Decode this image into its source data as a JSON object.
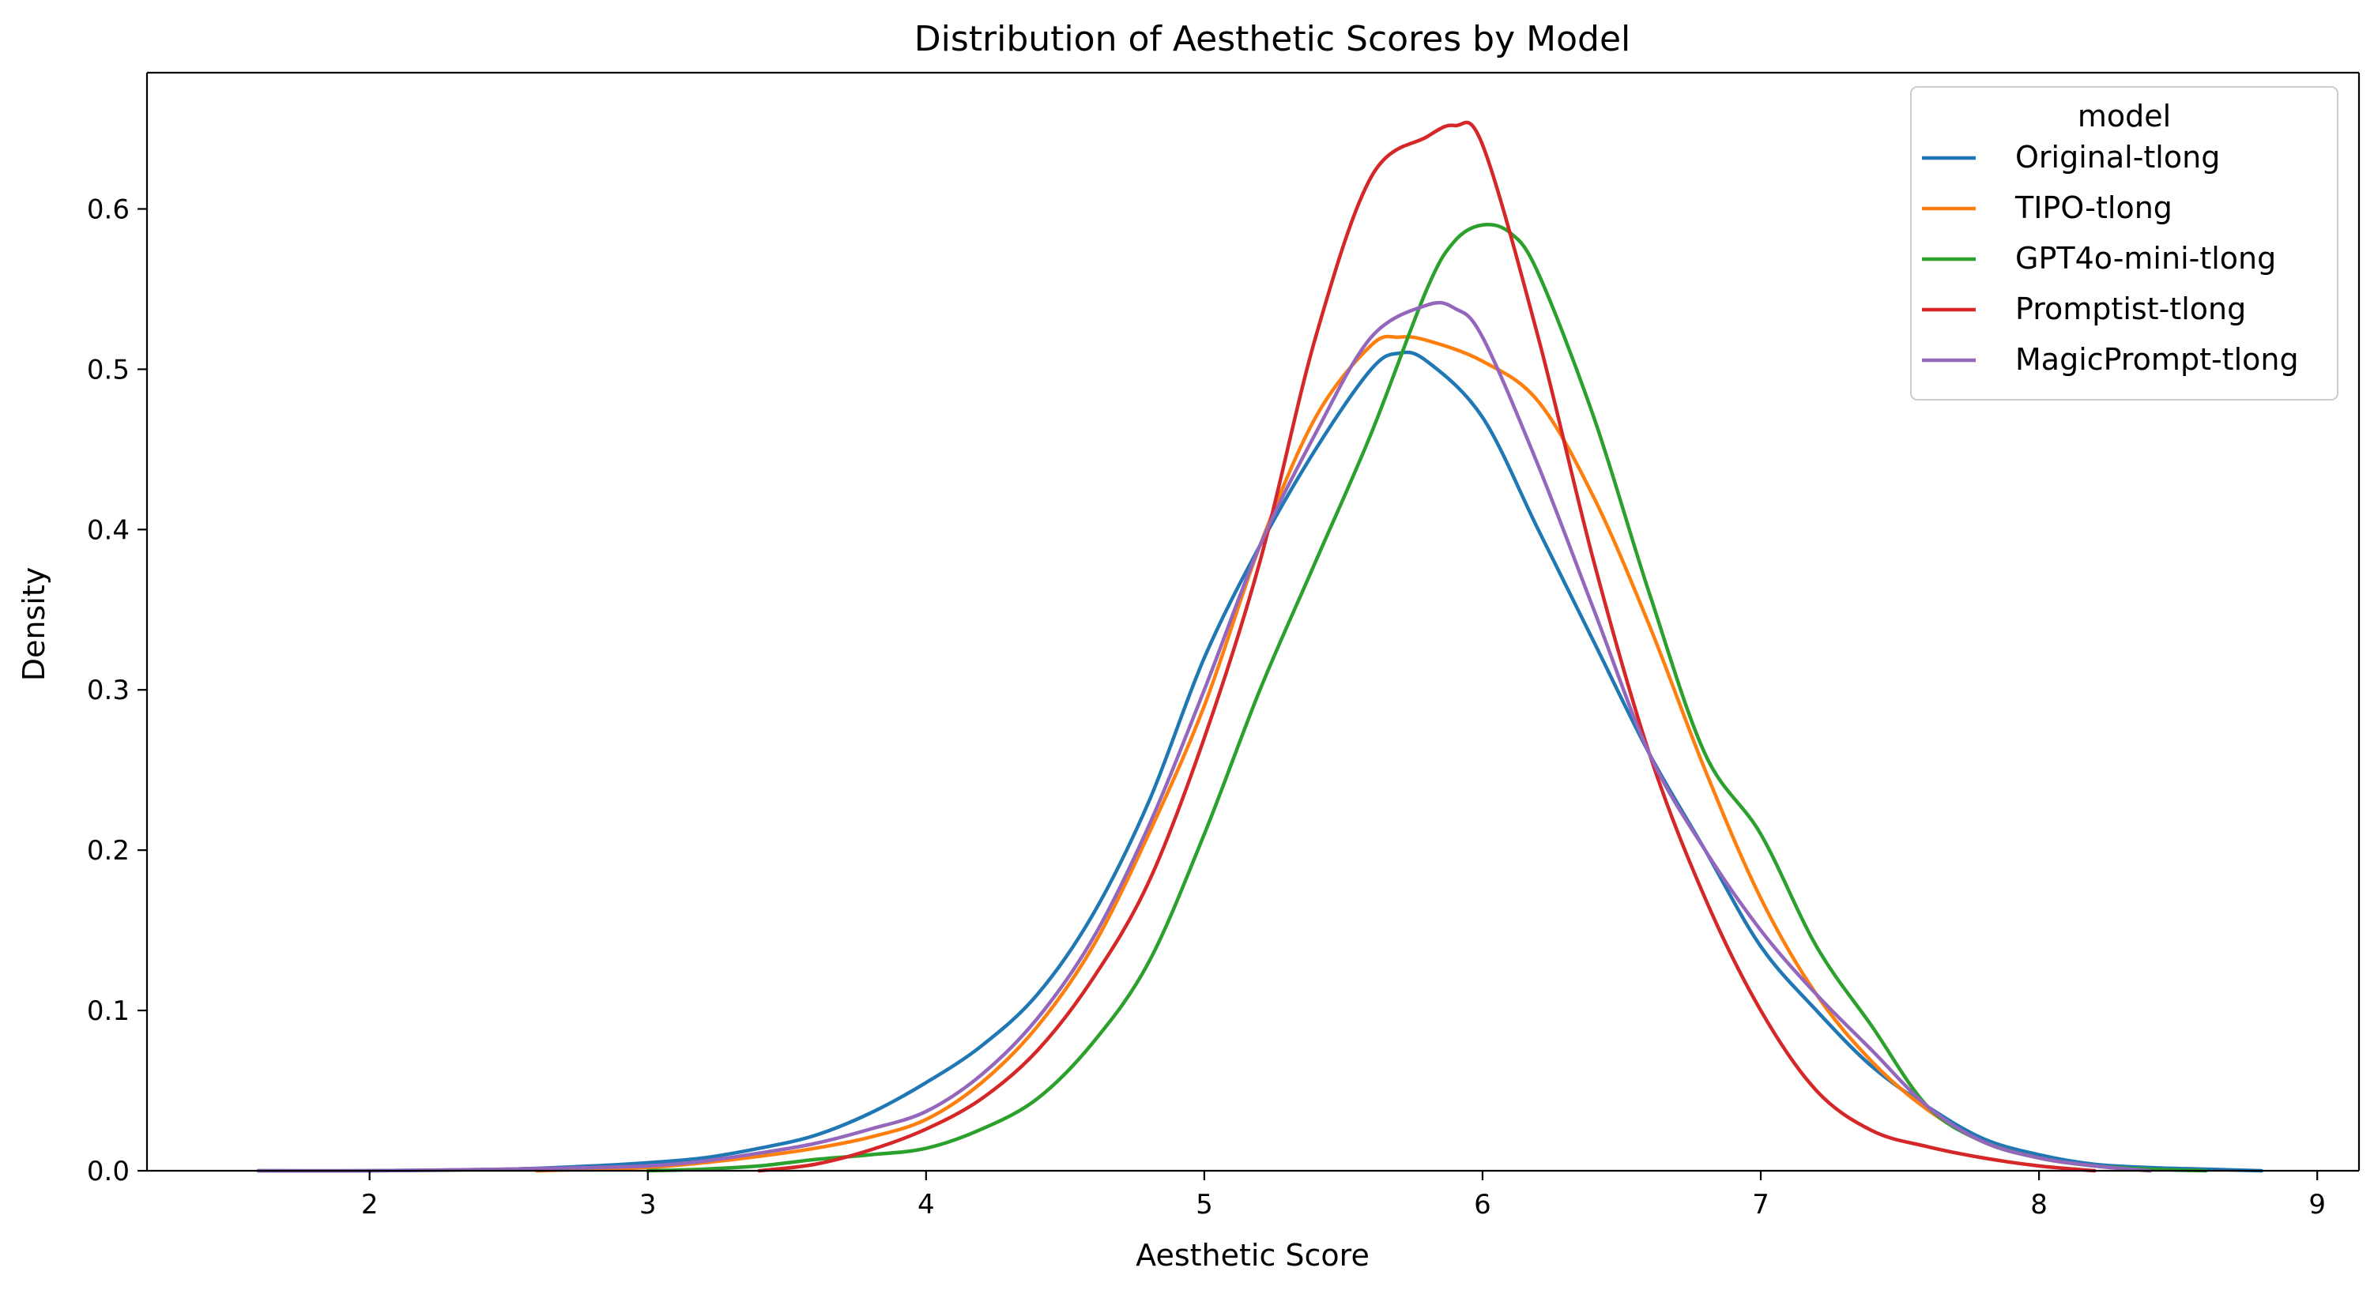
{
  "chart_data": {
    "type": "line",
    "title": "Distribution of Aesthetic Scores by Model",
    "xlabel": "Aesthetic Score",
    "ylabel": "Density",
    "xlim": [
      1.2,
      9.15
    ],
    "ylim": [
      0.0,
      0.685
    ],
    "xticks": [
      2,
      3,
      4,
      5,
      6,
      7,
      8,
      9
    ],
    "yticks": [
      0.0,
      0.1,
      0.2,
      0.3,
      0.4,
      0.5,
      0.6
    ],
    "legend": {
      "title": "model",
      "position": "top-right"
    },
    "series": [
      {
        "name": "Original-tlong",
        "color": "#1f77b4",
        "x": [
          1.6,
          2.0,
          2.5,
          2.8,
          3.0,
          3.2,
          3.4,
          3.6,
          3.8,
          4.0,
          4.2,
          4.4,
          4.6,
          4.8,
          5.0,
          5.2,
          5.4,
          5.6,
          5.7,
          5.8,
          6.0,
          6.2,
          6.4,
          6.6,
          6.8,
          7.0,
          7.2,
          7.4,
          7.6,
          7.8,
          8.0,
          8.2,
          8.4,
          8.6,
          8.8
        ],
        "y": [
          0.0,
          0.0,
          0.001,
          0.003,
          0.005,
          0.008,
          0.014,
          0.022,
          0.036,
          0.055,
          0.078,
          0.11,
          0.16,
          0.23,
          0.32,
          0.39,
          0.45,
          0.5,
          0.51,
          0.505,
          0.47,
          0.4,
          0.33,
          0.26,
          0.2,
          0.14,
          0.1,
          0.065,
          0.04,
          0.02,
          0.01,
          0.004,
          0.002,
          0.001,
          0.0
        ]
      },
      {
        "name": "TIPO-tlong",
        "color": "#ff7f0e",
        "x": [
          2.6,
          2.8,
          3.0,
          3.2,
          3.4,
          3.6,
          3.8,
          4.0,
          4.2,
          4.4,
          4.6,
          4.8,
          5.0,
          5.2,
          5.4,
          5.6,
          5.7,
          5.8,
          6.0,
          6.2,
          6.4,
          6.6,
          6.8,
          7.0,
          7.2,
          7.4,
          7.6,
          7.8,
          8.0,
          8.2,
          8.4
        ],
        "y": [
          0.0,
          0.001,
          0.002,
          0.005,
          0.009,
          0.014,
          0.021,
          0.032,
          0.055,
          0.09,
          0.14,
          0.21,
          0.29,
          0.39,
          0.47,
          0.515,
          0.52,
          0.518,
          0.505,
          0.48,
          0.42,
          0.34,
          0.25,
          0.17,
          0.11,
          0.068,
          0.038,
          0.018,
          0.008,
          0.003,
          0.0
        ]
      },
      {
        "name": "GPT4o-mini-tlong",
        "color": "#2ca02c",
        "x": [
          3.0,
          3.2,
          3.4,
          3.6,
          3.8,
          4.0,
          4.2,
          4.4,
          4.6,
          4.8,
          5.0,
          5.2,
          5.4,
          5.6,
          5.8,
          5.9,
          6.0,
          6.1,
          6.2,
          6.4,
          6.6,
          6.8,
          7.0,
          7.2,
          7.4,
          7.6,
          7.8,
          8.0,
          8.2,
          8.4,
          8.6
        ],
        "y": [
          0.0,
          0.001,
          0.003,
          0.007,
          0.01,
          0.014,
          0.026,
          0.045,
          0.08,
          0.13,
          0.21,
          0.3,
          0.38,
          0.46,
          0.55,
          0.58,
          0.59,
          0.585,
          0.56,
          0.47,
          0.36,
          0.26,
          0.21,
          0.14,
          0.09,
          0.04,
          0.018,
          0.008,
          0.003,
          0.001,
          0.0
        ]
      },
      {
        "name": "Promptist-tlong",
        "color": "#d62728",
        "x": [
          3.4,
          3.6,
          3.8,
          4.0,
          4.2,
          4.4,
          4.6,
          4.8,
          5.0,
          5.2,
          5.4,
          5.6,
          5.8,
          5.9,
          6.0,
          6.2,
          6.4,
          6.6,
          6.8,
          7.0,
          7.2,
          7.4,
          7.6,
          7.8,
          8.0,
          8.2
        ],
        "y": [
          0.0,
          0.004,
          0.013,
          0.026,
          0.045,
          0.075,
          0.12,
          0.18,
          0.27,
          0.38,
          0.52,
          0.62,
          0.645,
          0.652,
          0.64,
          0.52,
          0.38,
          0.26,
          0.17,
          0.1,
          0.05,
          0.025,
          0.015,
          0.008,
          0.003,
          0.0
        ]
      },
      {
        "name": "MagicPrompt-tlong",
        "color": "#9467bd",
        "x": [
          1.6,
          2.0,
          2.5,
          2.8,
          3.0,
          3.2,
          3.4,
          3.6,
          3.8,
          4.0,
          4.2,
          4.4,
          4.6,
          4.8,
          5.0,
          5.2,
          5.4,
          5.6,
          5.8,
          5.9,
          6.0,
          6.2,
          6.4,
          6.6,
          6.8,
          7.0,
          7.2,
          7.4,
          7.6,
          7.8,
          8.0,
          8.2,
          8.4
        ],
        "y": [
          0.0,
          0.0,
          0.001,
          0.002,
          0.003,
          0.006,
          0.011,
          0.017,
          0.026,
          0.037,
          0.06,
          0.095,
          0.145,
          0.215,
          0.3,
          0.39,
          0.46,
          0.52,
          0.54,
          0.538,
          0.52,
          0.44,
          0.35,
          0.26,
          0.2,
          0.15,
          0.11,
          0.075,
          0.04,
          0.018,
          0.008,
          0.003,
          0.0
        ]
      }
    ]
  }
}
